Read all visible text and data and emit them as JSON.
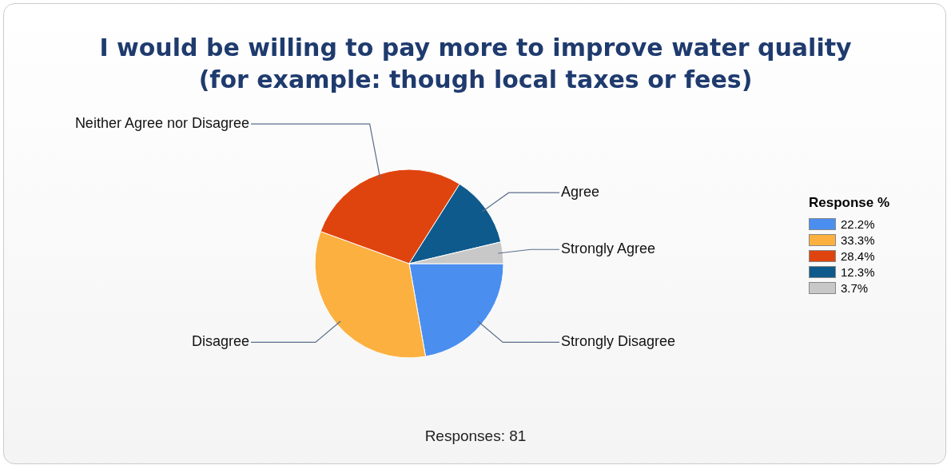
{
  "chart_data": {
    "type": "pie",
    "title": "I would be willing to pay more to improve water quality (for example: though local taxes or fees)",
    "categories": [
      "Strongly Disagree",
      "Disagree",
      "Neither Agree nor Disagree",
      "Agree",
      "Strongly Agree"
    ],
    "values": [
      22.2,
      33.3,
      28.4,
      12.3,
      3.7
    ],
    "colors": [
      "#4a8ff0",
      "#fbb040",
      "#e0440e",
      "#0f5a8c",
      "#c8c8c8"
    ],
    "legend_title": "Response %",
    "annotations": [
      "22.2%",
      "33.3%",
      "28.4%",
      "12.3%",
      "3.7%",
      "Responses: 81"
    ]
  }
}
